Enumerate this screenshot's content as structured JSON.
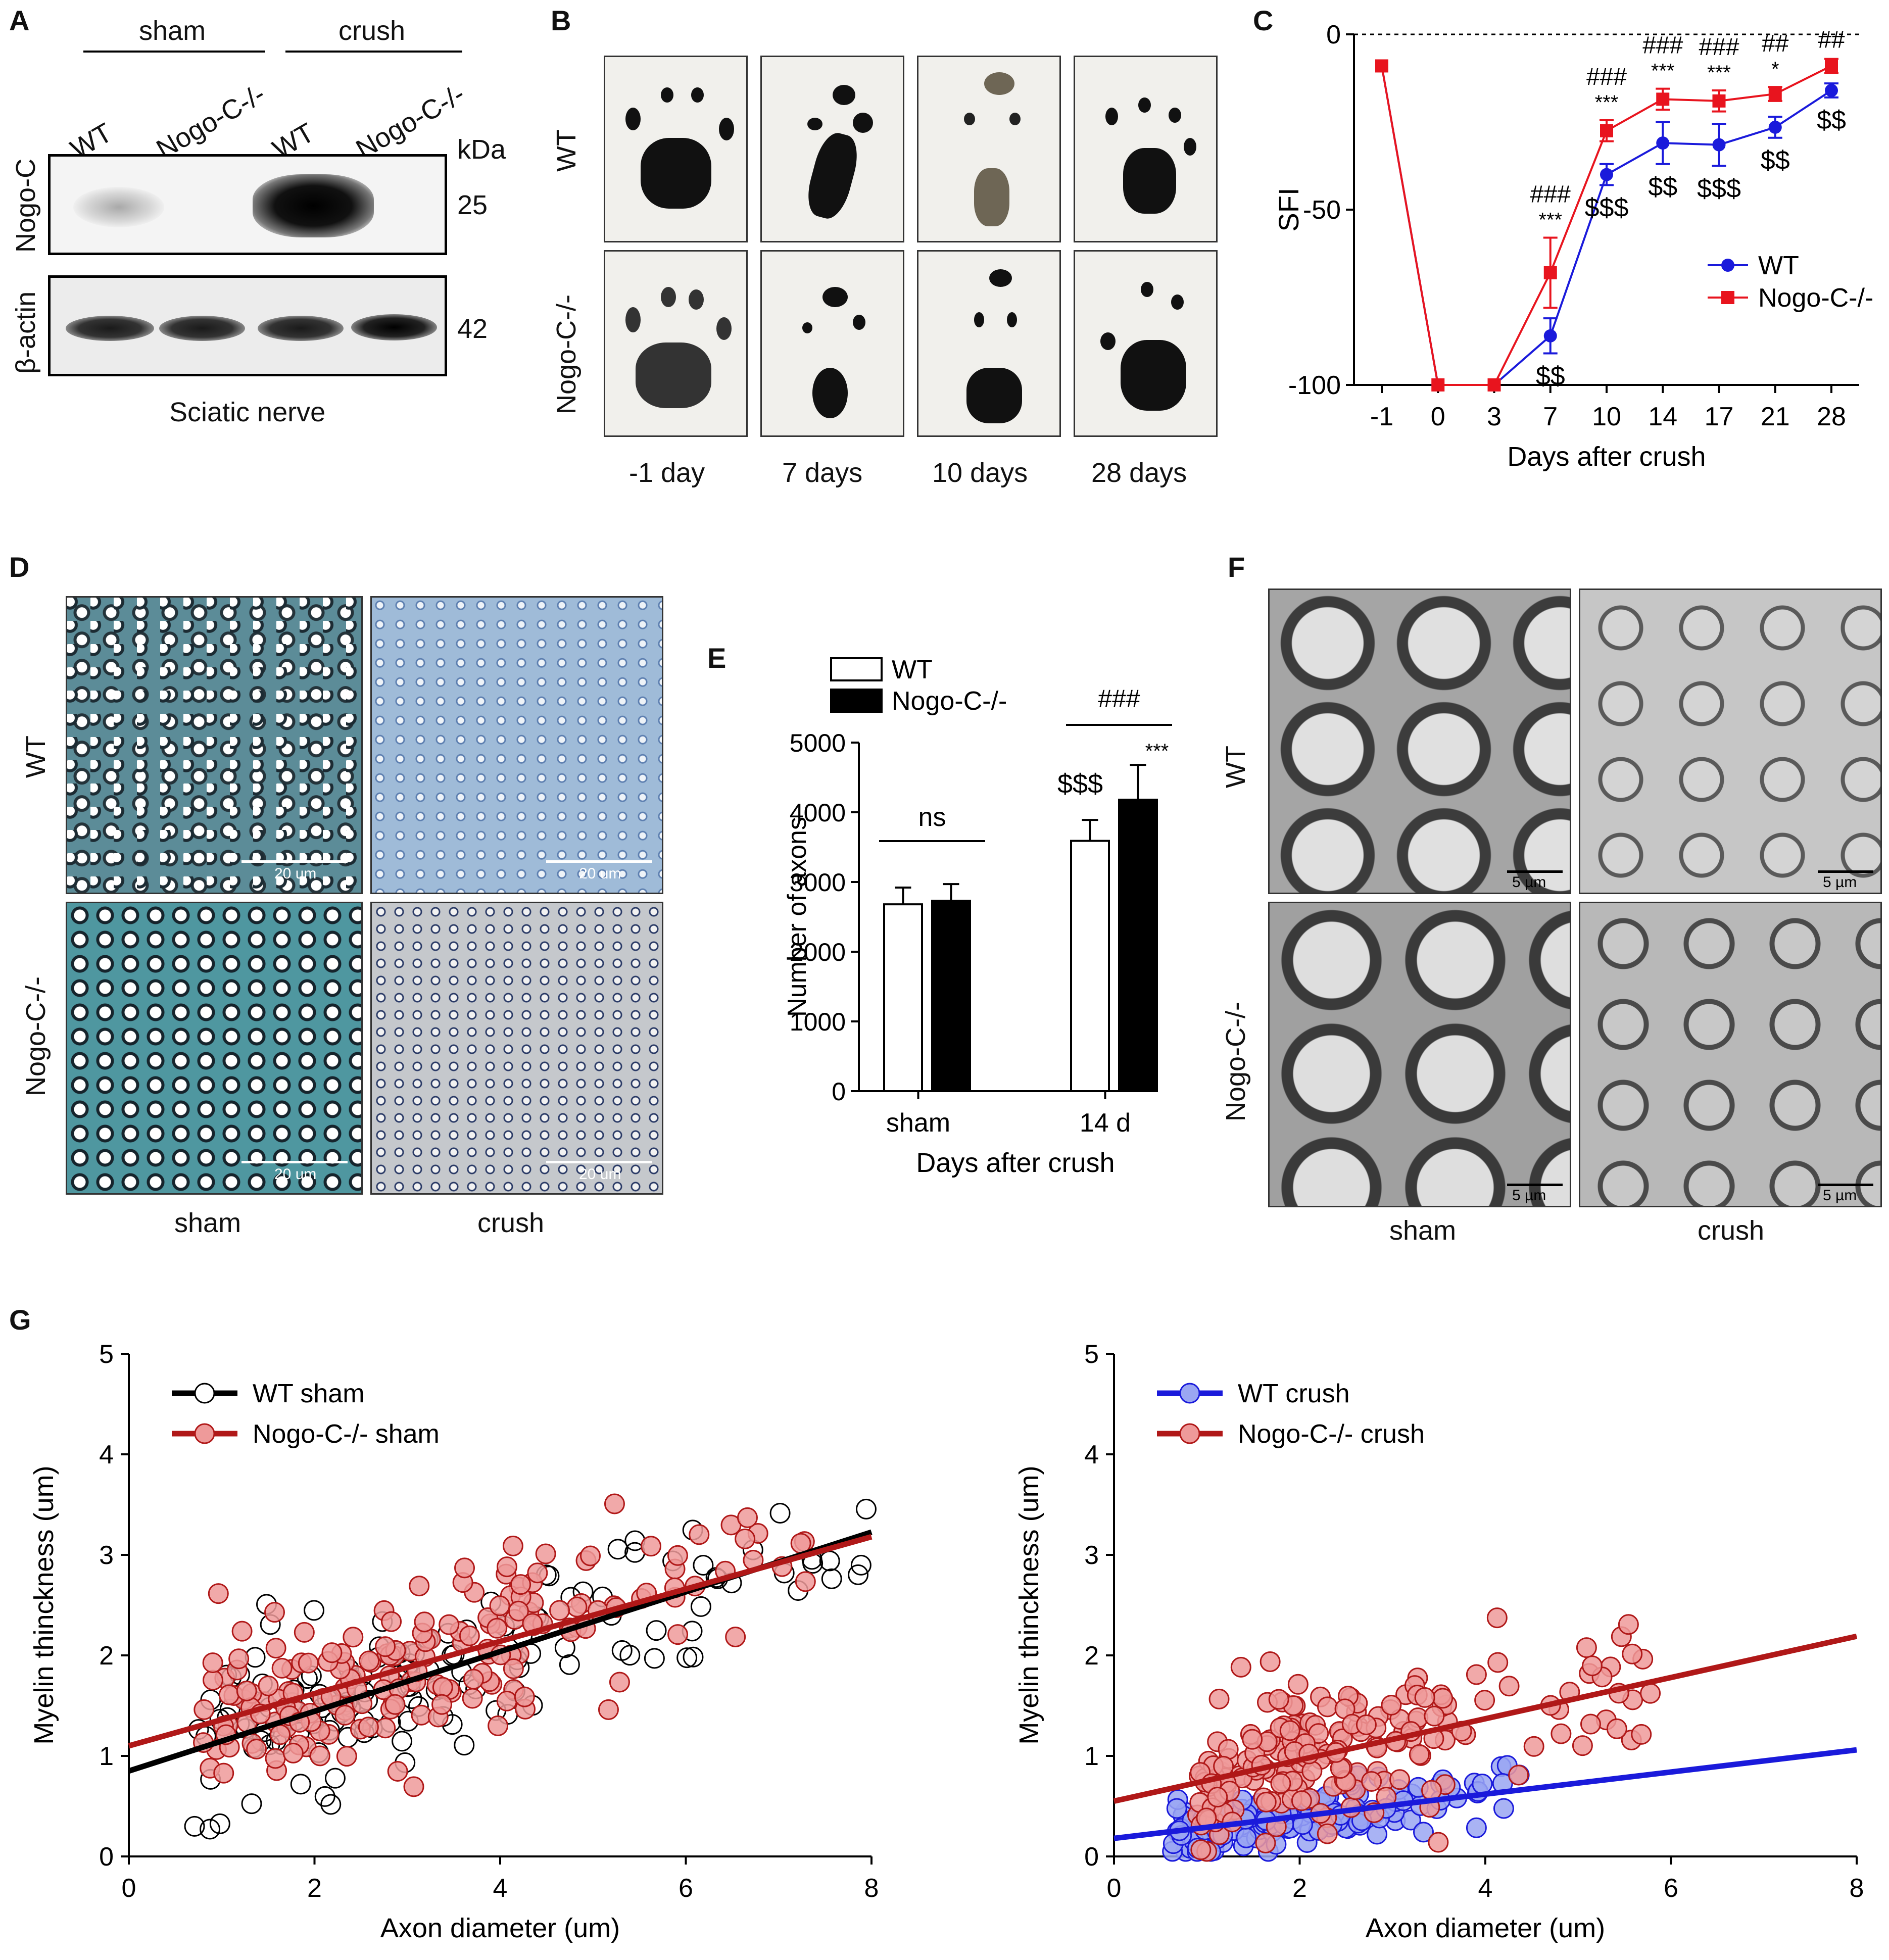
{
  "panels": {
    "A": "A",
    "B": "B",
    "C": "C",
    "D": "D",
    "E": "E",
    "F": "F",
    "G": "G"
  },
  "panelA": {
    "group_left": "sham",
    "group_right": "crush",
    "lanes": [
      "WT",
      "Nogo-C-/-",
      "WT",
      "Nogo-C-/-"
    ],
    "kda": "kDa",
    "rows": [
      {
        "protein": "Nogo-C",
        "mw": "25"
      },
      {
        "protein": "β-actin",
        "mw": "42"
      }
    ],
    "tissue": "Sciatic nerve"
  },
  "panelB": {
    "rows": [
      "WT",
      "Nogo-C-/-"
    ],
    "cols": [
      "-1 day",
      "7 days",
      "10 days",
      "28 days"
    ]
  },
  "panelD": {
    "rows": [
      "WT",
      "Nogo-C-/-"
    ],
    "cols": [
      "sham",
      "crush"
    ],
    "scale": "20 um"
  },
  "panelF": {
    "rows": [
      "WT",
      "Nogo-C-/-"
    ],
    "cols": [
      "sham",
      "crush"
    ],
    "scale": "5 µm"
  },
  "chart_data": [
    {
      "id": "C",
      "type": "line",
      "xlabel": "Days after crush",
      "ylabel": "SFI",
      "categories": [
        "-1",
        "0",
        "3",
        "7",
        "10",
        "14",
        "17",
        "21",
        "28"
      ],
      "ylim": [
        -100,
        0
      ],
      "yticks": [
        "0",
        "-50",
        "-100"
      ],
      "reference_line": 0,
      "series": [
        {
          "name": "WT",
          "color": "#1a1adb",
          "marker": "circle",
          "values": [
            -9,
            -100,
            -100,
            -86,
            -40,
            -31,
            -31.5,
            -26.5,
            -16
          ],
          "errors": [
            0,
            0,
            0,
            5,
            3,
            6,
            6,
            3,
            2
          ]
        },
        {
          "name": "Nogo-C-/-",
          "color": "#e8141e",
          "marker": "square",
          "values": [
            -9,
            -100,
            -100,
            -68,
            -27.5,
            -18.5,
            -19,
            -17,
            -9
          ],
          "errors": [
            0,
            0,
            0,
            10,
            3,
            3,
            3,
            2,
            2
          ]
        }
      ],
      "annotations": {
        "above": [
          {
            "x": "7",
            "lines": [
              "###",
              "***"
            ]
          },
          {
            "x": "10",
            "lines": [
              "###",
              "***"
            ]
          },
          {
            "x": "14",
            "lines": [
              "###",
              "***"
            ]
          },
          {
            "x": "17",
            "lines": [
              "###",
              "***"
            ]
          },
          {
            "x": "21",
            "lines": [
              "##",
              "*"
            ]
          },
          {
            "x": "28",
            "lines": [
              "##"
            ]
          }
        ],
        "below": [
          {
            "x": "7",
            "text": "$$"
          },
          {
            "x": "10",
            "text": "$$$"
          },
          {
            "x": "14",
            "text": "$$"
          },
          {
            "x": "17",
            "text": "$$$"
          },
          {
            "x": "21",
            "text": "$$"
          },
          {
            "x": "28",
            "text": "$$"
          }
        ]
      }
    },
    {
      "id": "E",
      "type": "bar",
      "xlabel": "Days after crush",
      "ylabel": "Number of axons",
      "categories": [
        "sham",
        "14 d"
      ],
      "ylim": [
        0,
        5000
      ],
      "yticks": [
        "0",
        "1000",
        "2000",
        "3000",
        "4000",
        "5000"
      ],
      "series": [
        {
          "name": "WT",
          "fill": "#ffffff",
          "values": [
            2680,
            3590
          ],
          "errors": [
            240,
            300
          ]
        },
        {
          "name": "Nogo-C-/-",
          "fill": "#000000",
          "values": [
            2730,
            4180
          ],
          "errors": [
            240,
            500
          ]
        }
      ],
      "annotations": {
        "sham_bracket": "ns",
        "d14_bracket": "###",
        "wt_14d": "$$$",
        "ko_14d": "***"
      }
    },
    {
      "id": "G-left",
      "type": "scatter",
      "xlabel": "Axon diameter (um)",
      "ylabel": "Myelin thinckness (um)",
      "xlim": [
        0,
        8
      ],
      "ylim": [
        0,
        5
      ],
      "xticks": [
        "0",
        "2",
        "4",
        "6",
        "8"
      ],
      "yticks": [
        "0",
        "1",
        "2",
        "3",
        "4",
        "5"
      ],
      "series": [
        {
          "name": "WT sham",
          "stroke": "#000000",
          "fill": "none",
          "line_color": "#000000",
          "fit": {
            "intercept": 0.85,
            "slope": 0.297
          },
          "n": 140,
          "x_range": [
            0.7,
            8.0
          ],
          "noise": 0.42
        },
        {
          "name": "Nogo-C-/- sham",
          "stroke": "#b01818",
          "fill": "#ee9a9a",
          "line_color": "#b01818",
          "fit": {
            "intercept": 1.1,
            "slope": 0.26
          },
          "n": 190,
          "x_range": [
            0.8,
            7.3
          ],
          "noise": 0.42
        }
      ]
    },
    {
      "id": "G-right",
      "type": "scatter",
      "xlabel": "Axon diameter (um)",
      "ylabel": "Myelin thinckness (um)",
      "xlim": [
        0,
        8
      ],
      "ylim": [
        0,
        5
      ],
      "xticks": [
        "0",
        "2",
        "4",
        "6",
        "8"
      ],
      "yticks": [
        "0",
        "1",
        "2",
        "3",
        "4",
        "5"
      ],
      "series": [
        {
          "name": "WT crush",
          "stroke": "#1a1adb",
          "fill": "#9aa6f2",
          "line_color": "#1a1adb",
          "fit": {
            "intercept": 0.18,
            "slope": 0.11
          },
          "n": 150,
          "x_range": [
            0.6,
            4.4
          ],
          "noise": 0.16
        },
        {
          "name": "Nogo-C-/- crush",
          "stroke": "#b01818",
          "fill": "#ee9a9a",
          "line_color": "#b01818",
          "fit": {
            "intercept": 0.55,
            "slope": 0.205
          },
          "n": 200,
          "x_range": [
            0.9,
            5.8
          ],
          "noise": 0.35
        }
      ]
    }
  ]
}
